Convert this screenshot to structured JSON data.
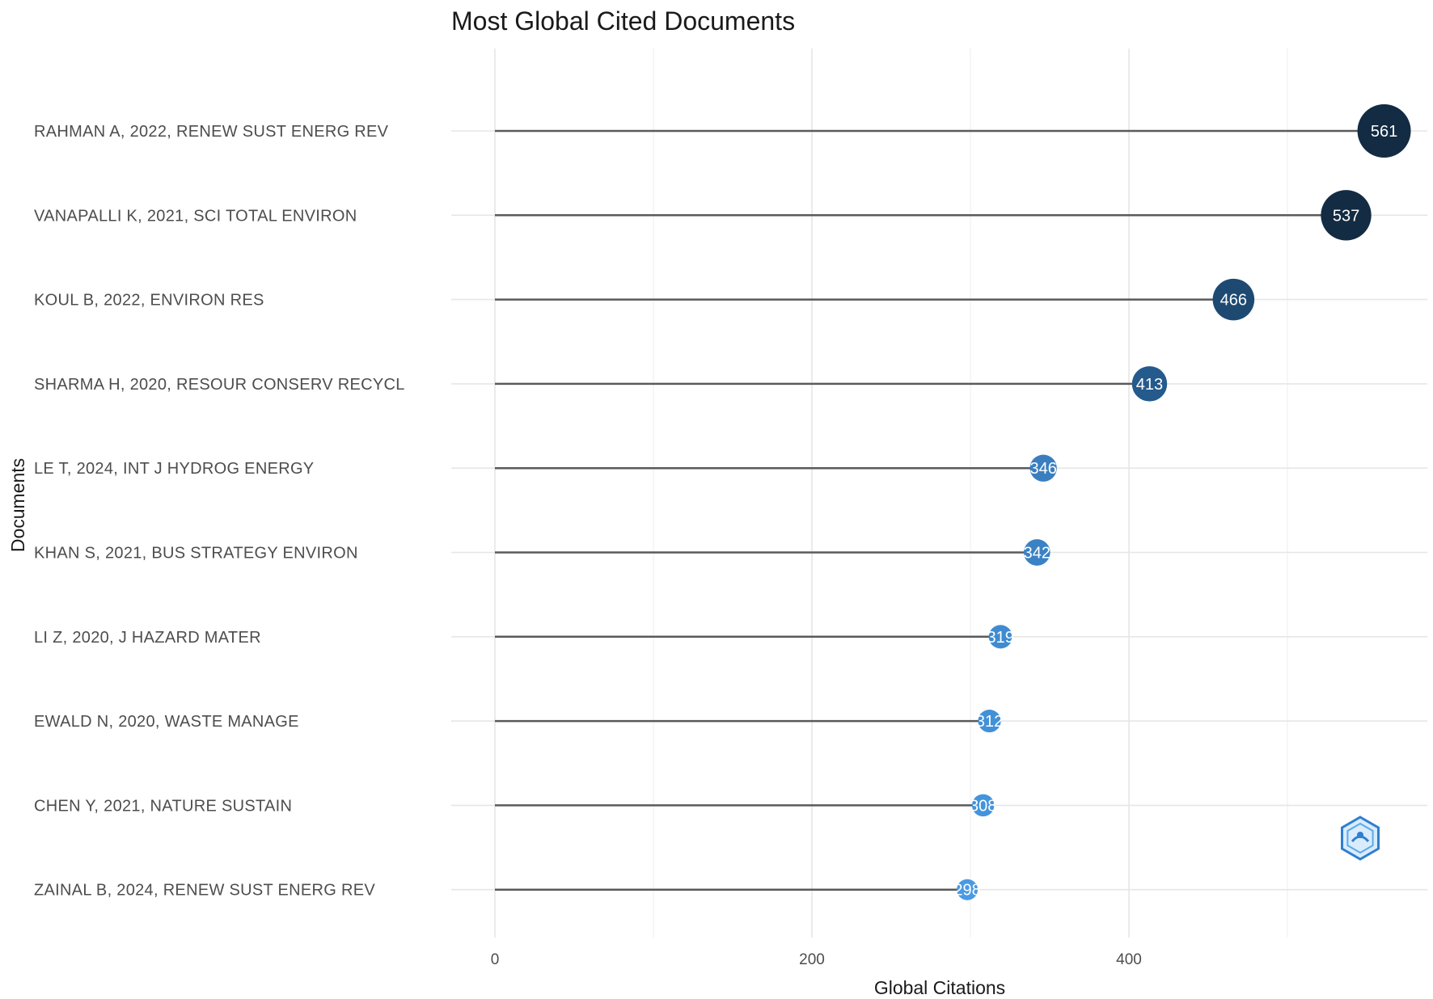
{
  "chart_data": {
    "type": "lollipop",
    "title": "Most Global Cited Documents",
    "xlabel": "Global Citations",
    "ylabel": "Documents",
    "xlim": [
      0,
      590
    ],
    "xticks": [
      0,
      200,
      400
    ],
    "grid": true,
    "legend": "none",
    "categories": [
      "RAHMAN A, 2022, RENEW SUST ENERG REV",
      "VANAPALLI K, 2021, SCI TOTAL ENVIRON",
      "KOUL B, 2022, ENVIRON RES",
      "SHARMA H, 2020, RESOUR CONSERV RECYCL",
      "LE T, 2024, INT J HYDROG ENERGY",
      "KHAN S, 2021, BUS STRATEGY ENVIRON",
      "LI Z, 2020, J HAZARD MATER",
      "EWALD N, 2020, WASTE MANAGE",
      "CHEN Y, 2021, NATURE SUSTAIN",
      "ZAINAL B, 2024, RENEW SUST ENERG REV"
    ],
    "values": [
      561,
      537,
      466,
      413,
      346,
      342,
      319,
      312,
      308,
      298
    ],
    "value_labels": [
      "561",
      "537",
      "466",
      "413",
      "346",
      "342",
      "319",
      "312",
      "308",
      "298"
    ],
    "colors": [
      "#132b43",
      "#132b43",
      "#1e4a72",
      "#245a8c",
      "#3a7ec0",
      "#3b82c4",
      "#3f8bd1",
      "#4290d8",
      "#4494dc",
      "#4a9ae3"
    ]
  },
  "colors": {
    "background": "#ffffff",
    "stem": "#5a5a5a",
    "grid": "#e6e6e6"
  },
  "watermark": {
    "icon": "hexagon-logo-icon"
  }
}
